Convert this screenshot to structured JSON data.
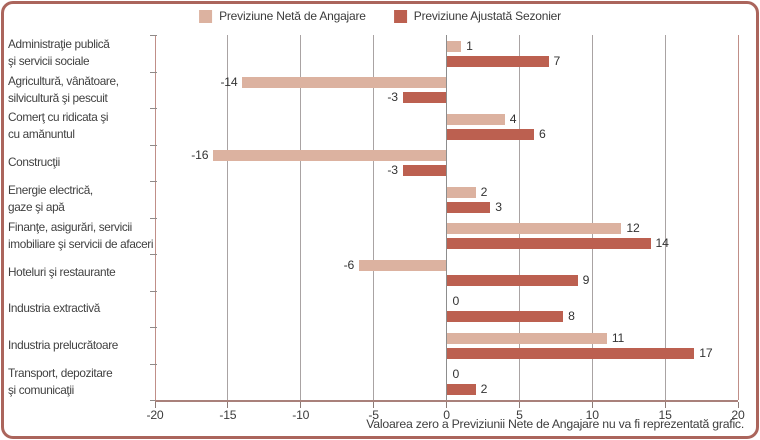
{
  "legend": {
    "items": [
      {
        "label": "Previziune Netă de Angajare",
        "color": "#dcb2a0"
      },
      {
        "label": "Previziune Ajustată Sezonier",
        "color": "#bc6050"
      }
    ]
  },
  "footnote": "Valoarea zero a Previziunii Nete de Angajare nu va fi reprezentată grafic.",
  "colors": {
    "net_bar": "#dcb2a0",
    "adjusted_bar": "#bc6050",
    "card_border": "#ab655c",
    "grid": "#a9a3a3",
    "grid_zero": "#8d8d8d",
    "grid_edge": "#c08f88",
    "axis": "#a9817b",
    "text": "#3b3b3b"
  },
  "chart_data": {
    "type": "bar",
    "orientation": "horizontal",
    "title": "",
    "xlabel": "",
    "ylabel": "",
    "xlim": [
      -20,
      20
    ],
    "xticks": [
      -20,
      -15,
      -10,
      -5,
      0,
      5,
      10,
      15,
      20
    ],
    "grid": true,
    "legend_position": "top",
    "value_labels": true,
    "categories": [
      "Administraţie publică\nşi servicii sociale",
      "Agricultură, vânătoare,\nsilvicultură şi pescuit",
      "Comerţ cu ridicata şi\ncu amănuntul",
      "Construcţii",
      "Energie electrică,\ngaze şi apă",
      "Finanţe, asigurări, servicii\nimobiliare şi servicii de afaceri",
      "Hoteluri şi restaurante",
      "Industria extractivă",
      "Industria prelucrătoare",
      "Transport, depozitare\nşi comunicaţii"
    ],
    "series": [
      {
        "name": "Previziune Netă de Angajare",
        "color": "#dcb2a0",
        "values": [
          1,
          -14,
          4,
          -16,
          2,
          12,
          -6,
          0,
          11,
          0
        ]
      },
      {
        "name": "Previziune Ajustată Sezonier",
        "color": "#bc6050",
        "values": [
          7,
          -3,
          6,
          -3,
          3,
          14,
          9,
          8,
          17,
          2
        ]
      }
    ],
    "zero_note": "Valoarea zero a Previziunii Nete de Angajare nu va fi reprezentată grafic."
  }
}
